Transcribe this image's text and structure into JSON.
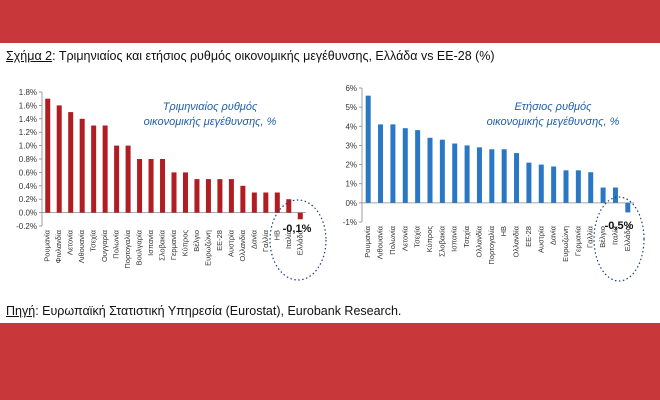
{
  "caption": {
    "label": "Σχήμα 2",
    "text": ": Τριμηνιαίος και ετήσιος ρυθμός οικονομικής μεγέθυνσης, Ελλάδα vs ΕΕ-28 (%)"
  },
  "source": {
    "label": "Πηγή",
    "text": ": Ευρωπαϊκή Στατιστική Υπηρεσία (Eurostat), Eurobank Research."
  },
  "colors": {
    "background": "#c8373a",
    "panel": "#ffffff",
    "quarterly_bars": "#b01e23",
    "annual_bars": "#2a78c3",
    "annotation_text": "#1f5fa8"
  },
  "chart_data": [
    {
      "type": "bar",
      "subtitle_line1": "Τριμηνιαίος ρυθμός",
      "subtitle_line2": "οικονομικής μεγέθυνσης, %",
      "categories": [
        "Ρουμανία",
        "Φινλανδία",
        "Λετονία",
        "Λιθουανία",
        "Τσεχία",
        "Ουγγαρία",
        "Πολωνία",
        "Πορτογαλία",
        "Βουλγαρία",
        "Ισπανία",
        "Σλοβακία",
        "Γερμανία",
        "Κύπρος",
        "Βέλγιο",
        "Ευρωζώνη",
        "ΕΕ-28",
        "Αυστρία",
        "Ολλανδία",
        "Δανία",
        "Γαλλία",
        "ΗΒ",
        "Ιταλία",
        "Ελλάδα"
      ],
      "values": [
        1.7,
        1.6,
        1.5,
        1.4,
        1.3,
        1.3,
        1.0,
        1.0,
        0.8,
        0.8,
        0.8,
        0.6,
        0.6,
        0.5,
        0.5,
        0.5,
        0.5,
        0.4,
        0.3,
        0.3,
        0.3,
        0.2,
        -0.1
      ],
      "ylim": [
        -0.2,
        1.8
      ],
      "yticks": [
        "-0.2%",
        "0.0%",
        "0.2%",
        "0.4%",
        "0.6%",
        "0.8%",
        "1.0%",
        "1.2%",
        "1.4%",
        "1.6%",
        "1.8%"
      ],
      "ytick_values": [
        -0.2,
        0.0,
        0.2,
        0.4,
        0.6,
        0.8,
        1.0,
        1.2,
        1.4,
        1.6,
        1.8
      ],
      "annotation": "-0,1%"
    },
    {
      "type": "bar",
      "subtitle_line1": "Ετήσιος ρυθμός",
      "subtitle_line2": "οικονομικής μεγέθυνσης, %",
      "categories": [
        "Ρουμανία",
        "Λιθουανία",
        "Πολωνία",
        "Λετονία",
        "Τσεχία",
        "Κύπρος",
        "Σλοβακία",
        "Ισπανία",
        "Τσεχία",
        "Ολλανδία",
        "Πορτογαλία",
        "ΗΒ",
        "Ολλανδία",
        "ΕΕ-28",
        "Αυστρία",
        "Δανία",
        "Ευρωζώνη",
        "Γερμανία",
        "Γαλλία",
        "Βέλγιο",
        "Ιταλία",
        "Ελλάδα"
      ],
      "values": [
        5.6,
        4.1,
        4.1,
        3.9,
        3.8,
        3.4,
        3.3,
        3.1,
        3.0,
        2.9,
        2.8,
        2.8,
        2.6,
        2.1,
        2.0,
        1.9,
        1.7,
        1.7,
        1.6,
        0.8,
        0.8,
        -0.5
      ],
      "ylim": [
        -1,
        6
      ],
      "yticks": [
        "-1%",
        "0%",
        "1%",
        "2%",
        "3%",
        "4%",
        "5%",
        "6%"
      ],
      "ytick_values": [
        -1,
        0,
        1,
        2,
        3,
        4,
        5,
        6
      ],
      "annotation": "-0,5%"
    }
  ]
}
